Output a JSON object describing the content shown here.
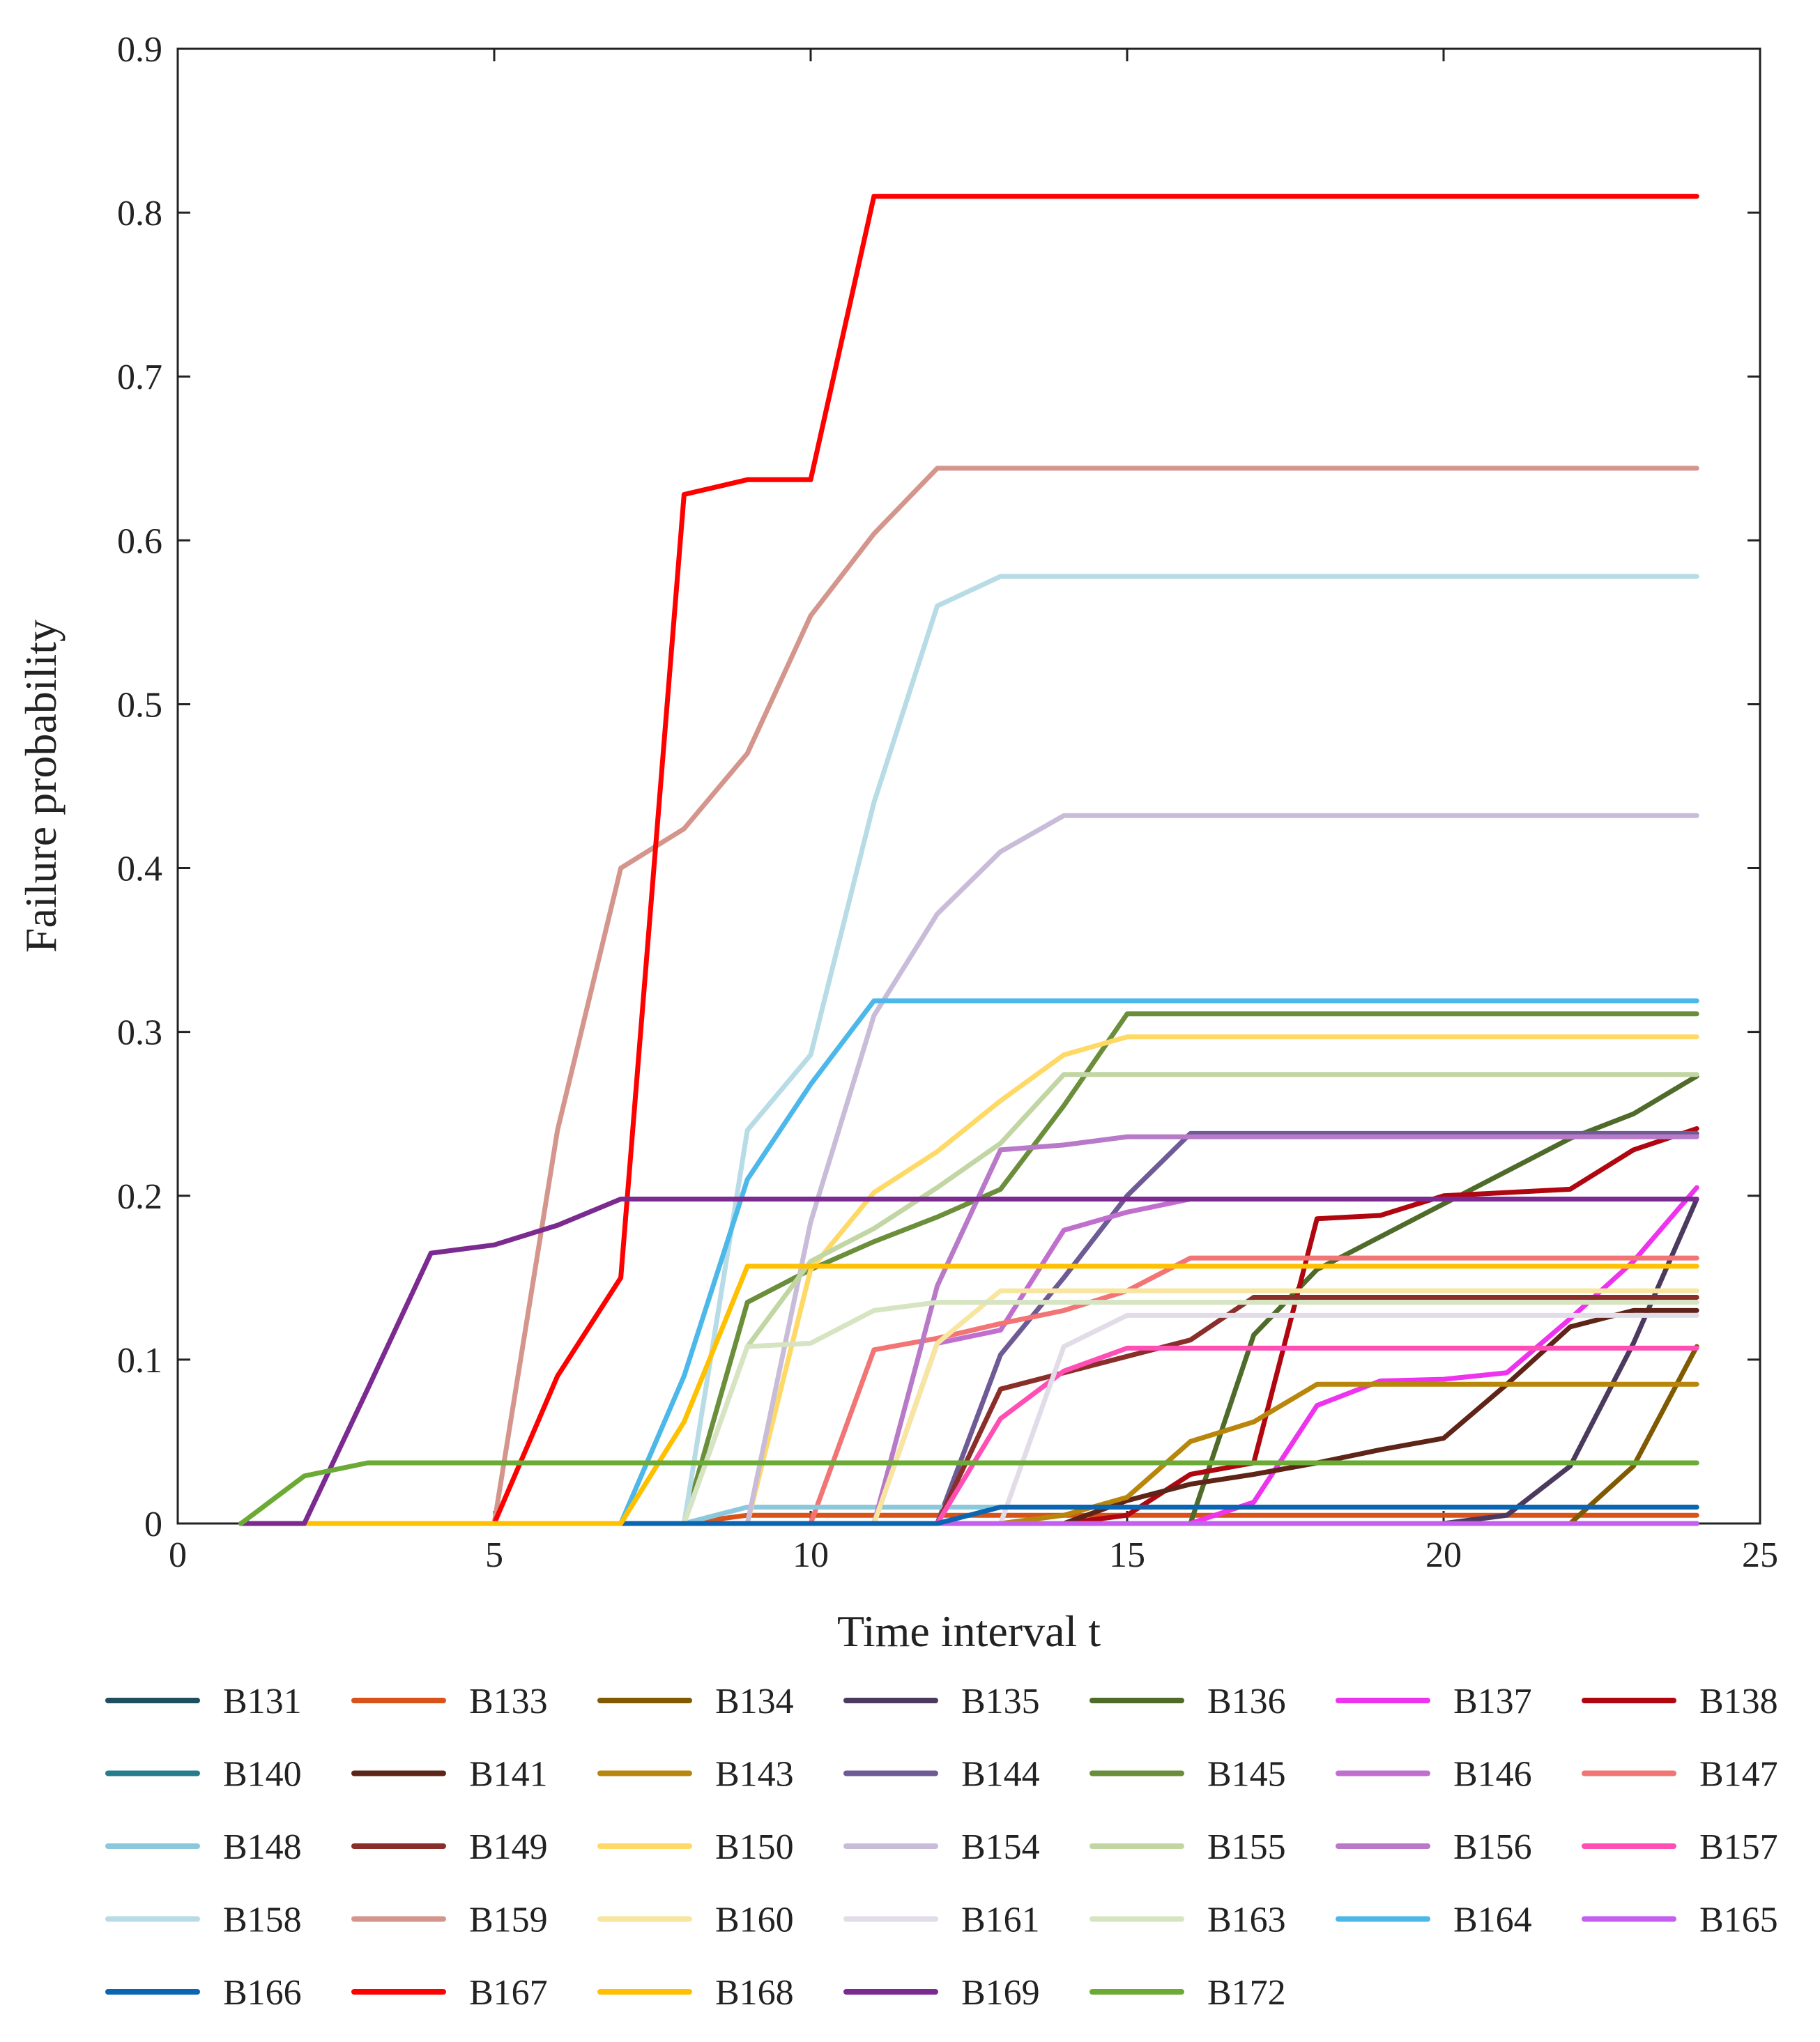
{
  "chart_data": {
    "type": "line",
    "title": "",
    "xlabel": "Time interval t",
    "ylabel": "Failure probability",
    "xlim": [
      0,
      25
    ],
    "ylim": [
      0,
      0.9
    ],
    "xticks": [
      0,
      5,
      10,
      15,
      20,
      25
    ],
    "yticks": [
      0,
      0.1,
      0.2,
      0.3,
      0.4,
      0.5,
      0.6,
      0.7,
      0.8,
      0.9
    ],
    "xtick_labels": [
      "0",
      "5",
      "10",
      "15",
      "20",
      "25"
    ],
    "ytick_labels": [
      "0",
      "0.1",
      "0.2",
      "0.3",
      "0.4",
      "0.5",
      "0.6",
      "0.7",
      "0.8",
      "0.9"
    ],
    "grid": false,
    "legend_position": "bottom",
    "x": [
      1,
      2,
      3,
      4,
      5,
      6,
      7,
      8,
      9,
      10,
      11,
      12,
      13,
      14,
      15,
      16,
      17,
      18,
      19,
      20,
      21,
      22,
      23,
      24
    ],
    "series": [
      {
        "name": "B131",
        "color": "#1f4e5f",
        "values": [
          0,
          0,
          0,
          0,
          0,
          0,
          0,
          0,
          0,
          0,
          0,
          0,
          0,
          0,
          0,
          0,
          0,
          0,
          0,
          0,
          0,
          0,
          0,
          0
        ]
      },
      {
        "name": "B133",
        "color": "#d95319",
        "values": [
          0,
          0,
          0,
          0,
          0,
          0,
          0,
          0,
          0.005,
          0.005,
          0.005,
          0.005,
          0.005,
          0.005,
          0.005,
          0.005,
          0.005,
          0.005,
          0.005,
          0.005,
          0.005,
          0.005,
          0.005,
          0.005
        ]
      },
      {
        "name": "B134",
        "color": "#7f5a00",
        "values": [
          0,
          0,
          0,
          0,
          0,
          0,
          0,
          0,
          0,
          0,
          0,
          0,
          0,
          0,
          0,
          0,
          0,
          0,
          0,
          0,
          0,
          0,
          0.035,
          0.108
        ]
      },
      {
        "name": "B135",
        "color": "#4b3a5e",
        "values": [
          0,
          0,
          0,
          0,
          0,
          0,
          0,
          0,
          0,
          0,
          0,
          0,
          0,
          0,
          0,
          0,
          0,
          0,
          0,
          0,
          0.005,
          0.035,
          0.11,
          0.198
        ]
      },
      {
        "name": "B136",
        "color": "#4e6b2a",
        "values": [
          0,
          0,
          0,
          0,
          0,
          0,
          0,
          0,
          0,
          0,
          0,
          0,
          0,
          0,
          0,
          0,
          0.115,
          0.155,
          0.175,
          0.195,
          0.215,
          0.235,
          0.25,
          0.273
        ]
      },
      {
        "name": "B137",
        "color": "#ee33ee",
        "values": [
          0,
          0,
          0,
          0,
          0,
          0,
          0,
          0,
          0,
          0,
          0,
          0,
          0,
          0,
          0,
          0,
          0.013,
          0.072,
          0.087,
          0.088,
          0.092,
          0.125,
          0.16,
          0.205
        ]
      },
      {
        "name": "B138",
        "color": "#b0060f",
        "values": [
          0,
          0,
          0,
          0,
          0,
          0,
          0,
          0,
          0,
          0,
          0,
          0,
          0,
          0,
          0.005,
          0.03,
          0.037,
          0.186,
          0.188,
          0.2,
          0.202,
          0.204,
          0.228,
          0.241
        ]
      },
      {
        "name": "B140",
        "color": "#247c8c",
        "values": [
          0,
          0,
          0,
          0,
          0,
          0,
          0,
          0,
          0,
          0,
          0,
          0,
          0,
          0,
          0,
          0,
          0,
          0,
          0,
          0,
          0,
          0,
          0,
          0
        ]
      },
      {
        "name": "B141",
        "color": "#5e2418",
        "values": [
          0,
          0,
          0,
          0,
          0,
          0,
          0,
          0,
          0,
          0,
          0,
          0,
          0,
          0,
          0.014,
          0.024,
          0.03,
          0.037,
          0.045,
          0.052,
          0.085,
          0.12,
          0.13,
          0.13
        ]
      },
      {
        "name": "B143",
        "color": "#b8860b",
        "values": [
          0,
          0,
          0,
          0,
          0,
          0,
          0,
          0,
          0,
          0,
          0,
          0,
          0,
          0.005,
          0.016,
          0.05,
          0.062,
          0.085,
          0.085,
          0.085,
          0.085,
          0.085,
          0.085,
          0.085
        ]
      },
      {
        "name": "B144",
        "color": "#6e5a94",
        "values": [
          0,
          0,
          0,
          0,
          0,
          0,
          0,
          0,
          0,
          0,
          0,
          0,
          0.103,
          0.15,
          0.2,
          0.238,
          0.238,
          0.238,
          0.238,
          0.238,
          0.238,
          0.238,
          0.238,
          0.238
        ]
      },
      {
        "name": "B145",
        "color": "#6b8e3a",
        "values": [
          0,
          0,
          0,
          0,
          0,
          0,
          0,
          0,
          0.135,
          0.155,
          0.172,
          0.187,
          0.204,
          0.255,
          0.311,
          0.311,
          0.311,
          0.311,
          0.311,
          0.311,
          0.311,
          0.311,
          0.311,
          0.311
        ]
      },
      {
        "name": "B146",
        "color": "#c06fcf",
        "values": [
          0,
          0,
          0,
          0,
          0,
          0,
          0,
          0,
          0,
          0,
          0,
          0.11,
          0.118,
          0.179,
          0.19,
          0.198,
          0.198,
          0.198,
          0.198,
          0.198,
          0.198,
          0.198,
          0.198,
          0.198
        ]
      },
      {
        "name": "B147",
        "color": "#f27474",
        "values": [
          0,
          0,
          0,
          0,
          0,
          0,
          0,
          0,
          0,
          0,
          0.106,
          0.113,
          0.122,
          0.13,
          0.142,
          0.162,
          0.162,
          0.162,
          0.162,
          0.162,
          0.162,
          0.162,
          0.162,
          0.162
        ]
      },
      {
        "name": "B148",
        "color": "#8cc8db",
        "values": [
          0,
          0,
          0,
          0,
          0,
          0,
          0,
          0,
          0.01,
          0.01,
          0.01,
          0.01,
          0.01,
          0.01,
          0.01,
          0.01,
          0.01,
          0.01,
          0.01,
          0.01,
          0.01,
          0.01,
          0.01,
          0.01
        ]
      },
      {
        "name": "B149",
        "color": "#8a2e2a",
        "values": [
          0,
          0,
          0,
          0,
          0,
          0,
          0,
          0,
          0,
          0,
          0,
          0,
          0.082,
          0.092,
          0.102,
          0.112,
          0.138,
          0.138,
          0.138,
          0.138,
          0.138,
          0.138,
          0.138,
          0.138
        ]
      },
      {
        "name": "B150",
        "color": "#ffd966",
        "values": [
          0,
          0,
          0,
          0,
          0,
          0,
          0,
          0,
          0,
          0.155,
          0.202,
          0.227,
          0.258,
          0.286,
          0.297,
          0.297,
          0.297,
          0.297,
          0.297,
          0.297,
          0.297,
          0.297,
          0.297,
          0.297
        ]
      },
      {
        "name": "B154",
        "color": "#c9bcd8",
        "values": [
          0,
          0,
          0,
          0,
          0,
          0,
          0,
          0,
          0,
          0.184,
          0.31,
          0.372,
          0.41,
          0.432,
          0.432,
          0.432,
          0.432,
          0.432,
          0.432,
          0.432,
          0.432,
          0.432,
          0.432,
          0.432
        ]
      },
      {
        "name": "B155",
        "color": "#c2d6a4",
        "values": [
          0,
          0,
          0,
          0,
          0,
          0,
          0,
          0,
          0.108,
          0.16,
          0.18,
          0.205,
          0.232,
          0.274,
          0.274,
          0.274,
          0.274,
          0.274,
          0.274,
          0.274,
          0.274,
          0.274,
          0.274,
          0.274
        ]
      },
      {
        "name": "B156",
        "color": "#b87ac8",
        "values": [
          0,
          0,
          0,
          0,
          0,
          0,
          0,
          0,
          0,
          0,
          0,
          0.145,
          0.228,
          0.231,
          0.236,
          0.236,
          0.236,
          0.236,
          0.236,
          0.236,
          0.236,
          0.236,
          0.236,
          0.236
        ]
      },
      {
        "name": "B157",
        "color": "#ff4fb5",
        "values": [
          0,
          0,
          0,
          0,
          0,
          0,
          0,
          0,
          0,
          0,
          0,
          0,
          0.064,
          0.093,
          0.107,
          0.107,
          0.107,
          0.107,
          0.107,
          0.107,
          0.107,
          0.107,
          0.107,
          0.107
        ]
      },
      {
        "name": "B158",
        "color": "#b7dce6",
        "values": [
          0,
          0,
          0,
          0,
          0,
          0,
          0,
          0,
          0.24,
          0.286,
          0.44,
          0.56,
          0.578,
          0.578,
          0.578,
          0.578,
          0.578,
          0.578,
          0.578,
          0.578,
          0.578,
          0.578,
          0.578,
          0.578
        ]
      },
      {
        "name": "B159",
        "color": "#d4968c",
        "values": [
          0,
          0,
          0,
          0,
          0,
          0.24,
          0.4,
          0.424,
          0.47,
          0.554,
          0.604,
          0.644,
          0.644,
          0.644,
          0.644,
          0.644,
          0.644,
          0.644,
          0.644,
          0.644,
          0.644,
          0.644,
          0.644,
          0.644
        ]
      },
      {
        "name": "B160",
        "color": "#f8e6a0",
        "values": [
          0,
          0,
          0,
          0,
          0,
          0,
          0,
          0,
          0,
          0,
          0,
          0.11,
          0.142,
          0.142,
          0.142,
          0.142,
          0.142,
          0.142,
          0.142,
          0.142,
          0.142,
          0.142,
          0.142,
          0.142
        ]
      },
      {
        "name": "B161",
        "color": "#e2dce8",
        "values": [
          0,
          0,
          0,
          0,
          0,
          0,
          0,
          0,
          0,
          0,
          0,
          0,
          0,
          0.108,
          0.127,
          0.127,
          0.127,
          0.127,
          0.127,
          0.127,
          0.127,
          0.127,
          0.127,
          0.127
        ]
      },
      {
        "name": "B163",
        "color": "#d6e4c2",
        "values": [
          0,
          0,
          0,
          0,
          0,
          0,
          0,
          0,
          0.108,
          0.11,
          0.13,
          0.135,
          0.135,
          0.135,
          0.135,
          0.135,
          0.135,
          0.135,
          0.135,
          0.135,
          0.135,
          0.135,
          0.135,
          0.135
        ]
      },
      {
        "name": "B164",
        "color": "#4cb8ea",
        "values": [
          0,
          0,
          0,
          0,
          0,
          0,
          0,
          0.09,
          0.21,
          0.268,
          0.319,
          0.319,
          0.319,
          0.319,
          0.319,
          0.319,
          0.319,
          0.319,
          0.319,
          0.319,
          0.319,
          0.319,
          0.319,
          0.319
        ]
      },
      {
        "name": "B165",
        "color": "#c45ff0",
        "values": [
          0,
          0,
          0,
          0,
          0,
          0,
          0,
          0,
          0,
          0,
          0,
          0,
          0,
          0,
          0,
          0,
          0,
          0,
          0,
          0,
          0,
          0,
          0,
          0
        ]
      },
      {
        "name": "B166",
        "color": "#0a66b2",
        "values": [
          0,
          0,
          0,
          0,
          0,
          0,
          0,
          0,
          0,
          0,
          0,
          0,
          0.01,
          0.01,
          0.01,
          0.01,
          0.01,
          0.01,
          0.01,
          0.01,
          0.01,
          0.01,
          0.01,
          0.01
        ]
      },
      {
        "name": "B167",
        "color": "#ff0000",
        "values": [
          0,
          0,
          0,
          0,
          0,
          0.09,
          0.15,
          0.628,
          0.637,
          0.637,
          0.81,
          0.81,
          0.81,
          0.81,
          0.81,
          0.81,
          0.81,
          0.81,
          0.81,
          0.81,
          0.81,
          0.81,
          0.81,
          0.81
        ]
      },
      {
        "name": "B168",
        "color": "#ffc000",
        "values": [
          0,
          0,
          0,
          0,
          0,
          0,
          0,
          0.062,
          0.157,
          0.157,
          0.157,
          0.157,
          0.157,
          0.157,
          0.157,
          0.157,
          0.157,
          0.157,
          0.157,
          0.157,
          0.157,
          0.157,
          0.157,
          0.157
        ]
      },
      {
        "name": "B169",
        "color": "#7b2a90",
        "values": [
          0,
          0,
          0.082,
          0.165,
          0.17,
          0.182,
          0.198,
          0.198,
          0.198,
          0.198,
          0.198,
          0.198,
          0.198,
          0.198,
          0.198,
          0.198,
          0.198,
          0.198,
          0.198,
          0.198,
          0.198,
          0.198,
          0.198,
          0.198
        ]
      },
      {
        "name": "B172",
        "color": "#6aaa35",
        "values": [
          0,
          0.029,
          0.037,
          0.037,
          0.037,
          0.037,
          0.037,
          0.037,
          0.037,
          0.037,
          0.037,
          0.037,
          0.037,
          0.037,
          0.037,
          0.037,
          0.037,
          0.037,
          0.037,
          0.037,
          0.037,
          0.037,
          0.037,
          0.037
        ]
      }
    ]
  }
}
